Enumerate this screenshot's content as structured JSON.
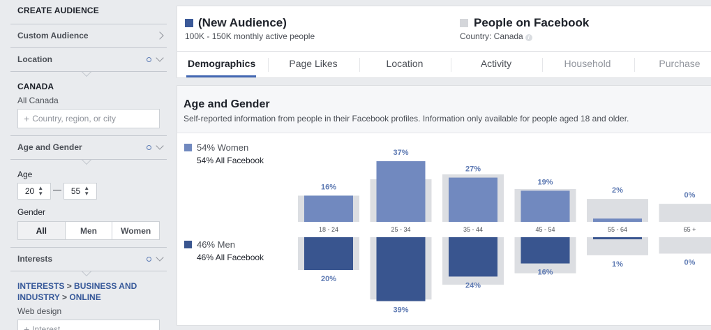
{
  "sidebar": {
    "title": "CREATE AUDIENCE",
    "custom_audience": "Custom Audience",
    "location_header": "Location",
    "location_country": "CANADA",
    "location_scope": "All Canada",
    "location_placeholder": "Country, region, or city",
    "age_gender_header": "Age and Gender",
    "age_label": "Age",
    "age_min": "20",
    "age_max": "55",
    "gender_label": "Gender",
    "gender_options": [
      "All",
      "Men",
      "Women"
    ],
    "gender_selected": "All",
    "interests_header": "Interests",
    "interest_path": [
      "INTERESTS",
      "BUSINESS AND INDUSTRY",
      "ONLINE"
    ],
    "interest_path_sep": ">",
    "interest_value": "Web design",
    "interest_placeholder": "Interest"
  },
  "header": {
    "audience_title": "(New Audience)",
    "audience_sub": "100K - 150K monthly active people",
    "compare_title": "People on Facebook",
    "compare_sub": "Country: Canada",
    "tabs": [
      "Demographics",
      "Page Likes",
      "Location",
      "Activity",
      "Household",
      "Purchase"
    ],
    "active_tab": "Demographics"
  },
  "section": {
    "title": "Age and Gender",
    "description": "Self-reported information from people in their Facebook profiles. Information only available for people aged 18 and older."
  },
  "legend": {
    "women_label": "54% Women",
    "women_sub": "54% All Facebook",
    "men_label": "46% Men",
    "men_sub": "46% All Facebook"
  },
  "colors": {
    "audience_square": "#3b5998",
    "compare_square": "#d4d6da",
    "women": "#7189bf",
    "men": "#39558f",
    "facebook_bg": "#dcdee2",
    "accent": "#4267b2"
  },
  "chart_data": {
    "type": "bar",
    "categories": [
      "18 - 24",
      "25 - 34",
      "35 - 44",
      "45 - 54",
      "55 - 64",
      "65 +"
    ],
    "series": [
      {
        "name": "Women",
        "values": [
          16,
          37,
          27,
          19,
          2,
          0
        ],
        "labels": [
          "16%",
          "37%",
          "27%",
          "19%",
          "2%",
          "0%"
        ]
      },
      {
        "name": "Men",
        "values": [
          20,
          39,
          24,
          16,
          1,
          0
        ],
        "labels": [
          "20%",
          "39%",
          "24%",
          "16%",
          "1%",
          "0%"
        ]
      }
    ],
    "facebook_women": [
      16,
      26,
      29,
      20,
      14,
      11
    ],
    "facebook_men": [
      20,
      38,
      29,
      22,
      11,
      10
    ]
  }
}
